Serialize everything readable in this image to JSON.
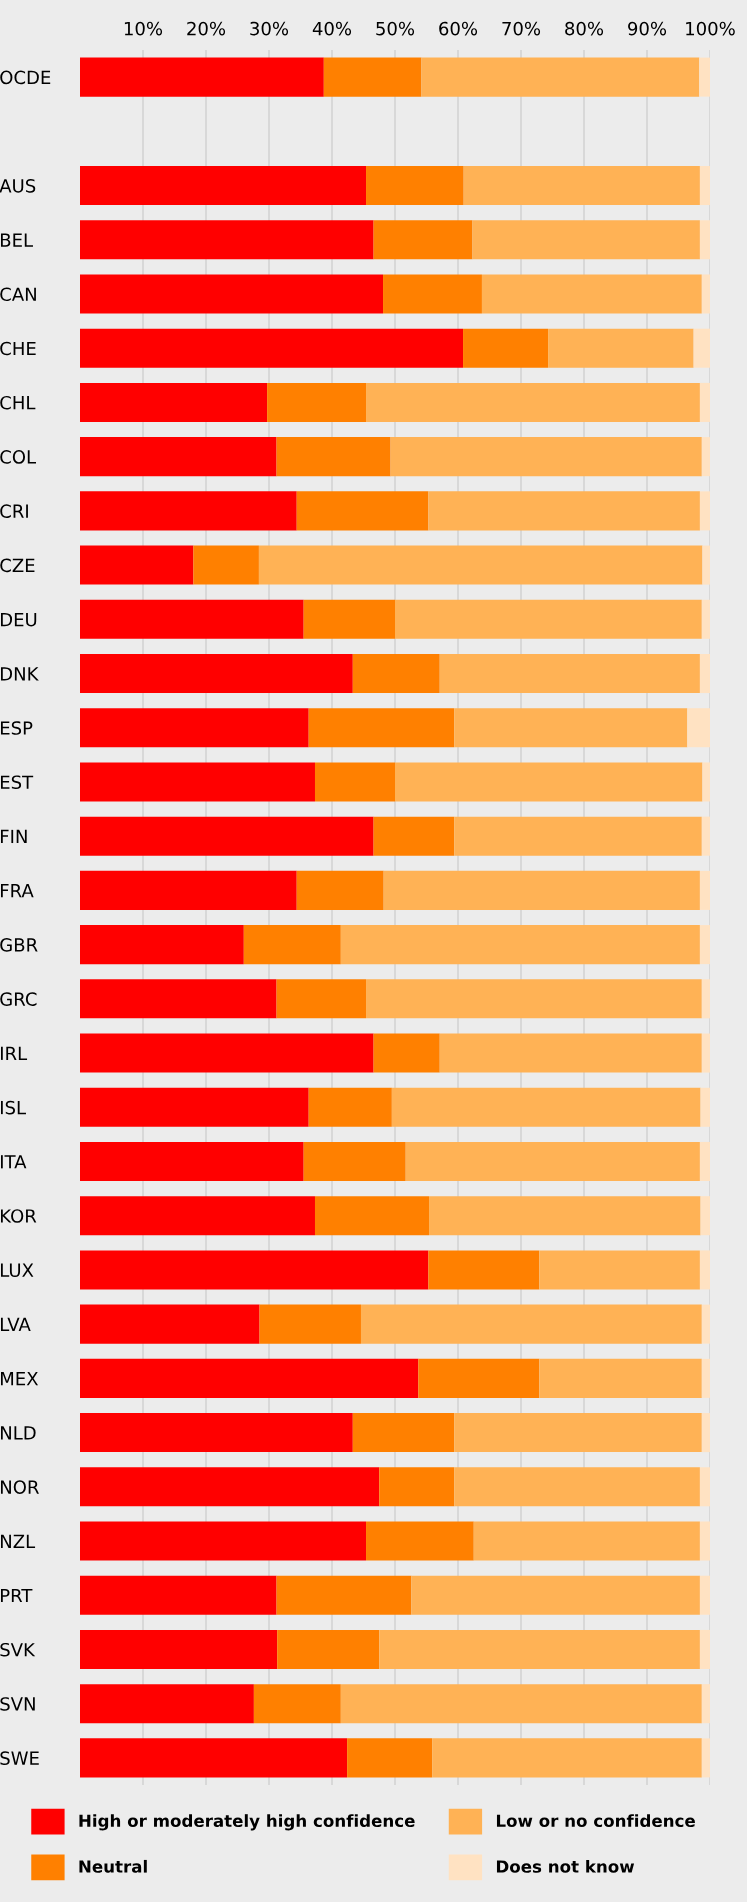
{
  "chart_data": {
    "type": "bar",
    "orientation": "horizontal",
    "stacked": true,
    "categories": [
      "OCDE",
      null,
      "AUS",
      "BEL",
      "CAN",
      "CHE",
      "CHL",
      "COL",
      "CRI",
      "CZE",
      "DEU",
      "DNK",
      "ESP",
      "EST",
      "FIN",
      "FRA",
      "GBR",
      "GRC",
      "IRL",
      "ISL",
      "ITA",
      "KOR",
      "LUX",
      "LVA",
      "MEX",
      "NLD",
      "NOR",
      "NZL",
      "PRT",
      "SVK",
      "SVN",
      "SWE"
    ],
    "series": [
      {
        "name": "High or moderately high confidence",
        "color": "#ff0000",
        "values": [
          38.7,
          null,
          45.4,
          46.6,
          48.1,
          60.8,
          29.7,
          31.2,
          34.4,
          18.0,
          35.5,
          43.3,
          36.3,
          37.3,
          46.6,
          34.4,
          26.0,
          31.2,
          46.6,
          36.3,
          35.5,
          37.3,
          55.3,
          28.5,
          53.7,
          43.3,
          47.5,
          45.4,
          31.2,
          31.3,
          27.6,
          42.4
        ]
      },
      {
        "name": "Neutral",
        "color": "#ff8000",
        "values": [
          15.5,
          null,
          15.5,
          15.7,
          15.7,
          13.5,
          15.7,
          18.1,
          20.9,
          10.4,
          14.5,
          13.8,
          23.1,
          12.7,
          12.8,
          13.8,
          15.4,
          14.2,
          10.5,
          13.2,
          16.2,
          18.1,
          17.6,
          16.1,
          19.2,
          16.1,
          11.9,
          17.1,
          21.4,
          16.2,
          13.8,
          13.5
        ]
      },
      {
        "name": "Low or no confidence",
        "color": "#ffb255",
        "values": [
          44.1,
          null,
          37.5,
          36.1,
          34.9,
          23.1,
          53.0,
          49.4,
          43.1,
          70.4,
          48.7,
          41.3,
          37.0,
          48.8,
          39.3,
          50.2,
          57.0,
          53.3,
          41.6,
          49.0,
          46.7,
          43.1,
          25.5,
          54.1,
          25.8,
          39.3,
          39.0,
          35.9,
          45.8,
          50.9,
          57.3,
          42.8
        ]
      },
      {
        "name": "Does not know",
        "color": "#ffe2c2",
        "values": [
          1.7,
          null,
          1.6,
          1.6,
          1.3,
          2.6,
          1.6,
          1.3,
          1.6,
          1.2,
          1.3,
          1.6,
          3.6,
          1.2,
          1.3,
          1.6,
          1.6,
          1.3,
          1.3,
          1.5,
          1.6,
          1.5,
          1.6,
          1.3,
          1.3,
          1.3,
          1.6,
          1.6,
          1.6,
          1.6,
          1.3,
          1.3
        ]
      }
    ],
    "xlim": [
      0,
      100
    ],
    "xticks": [
      {
        "value": 10,
        "label": "10%"
      },
      {
        "value": 20,
        "label": "20%"
      },
      {
        "value": 30,
        "label": "30%"
      },
      {
        "value": 40,
        "label": "40%"
      },
      {
        "value": 50,
        "label": "50%"
      },
      {
        "value": 60,
        "label": "60%"
      },
      {
        "value": 70,
        "label": "70%"
      },
      {
        "value": 80,
        "label": "80%"
      },
      {
        "value": 90,
        "label": "90%"
      },
      {
        "value": 100,
        "label": "100%"
      }
    ],
    "grid": "x",
    "legend": "bottom"
  }
}
